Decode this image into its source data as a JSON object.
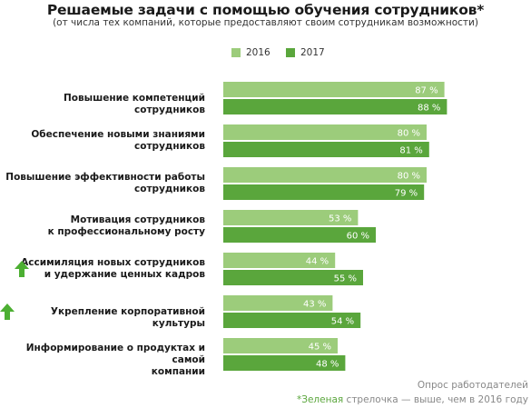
{
  "title": "Решаемые задачи с помощью обучения сотрудников*",
  "subtitle": "(от числа тех компаний, которые предоставляют своим сотрудникам возможности)",
  "chart_data": {
    "type": "bar",
    "orientation": "horizontal",
    "categories": [
      [
        "Повышение компетенций сотрудников"
      ],
      [
        "Обеспечение новыми знаниями",
        "сотрудников"
      ],
      [
        "Повышение эффективности работы",
        "сотрудников"
      ],
      [
        "Мотивация сотрудников",
        "к профессиональному росту"
      ],
      [
        "Ассимиляция новых сотрудников",
        "и удержание ценных кадров"
      ],
      [
        "Укрепление корпоративной культуры"
      ],
      [
        "Информирование о продуктах и самой",
        "компании"
      ]
    ],
    "highlight_up": [
      false,
      false,
      false,
      false,
      true,
      true,
      false
    ],
    "series": [
      {
        "name": "2016",
        "color": "#9ccc7b",
        "values": [
          87,
          80,
          80,
          53,
          44,
          43,
          45
        ]
      },
      {
        "name": "2017",
        "color": "#5aa63c",
        "values": [
          88,
          81,
          79,
          60,
          55,
          54,
          48
        ]
      }
    ],
    "value_suffix": " %",
    "xlim": [
      0,
      100
    ],
    "legend_position": "top"
  },
  "footer": {
    "source": "Опрос работодателей",
    "note_highlight": "*Зеленая",
    "note_rest": " стрелочка — выше, чем в 2016 году"
  },
  "colors": {
    "arrow": "#4caf32",
    "label_text": "#ffffff"
  }
}
